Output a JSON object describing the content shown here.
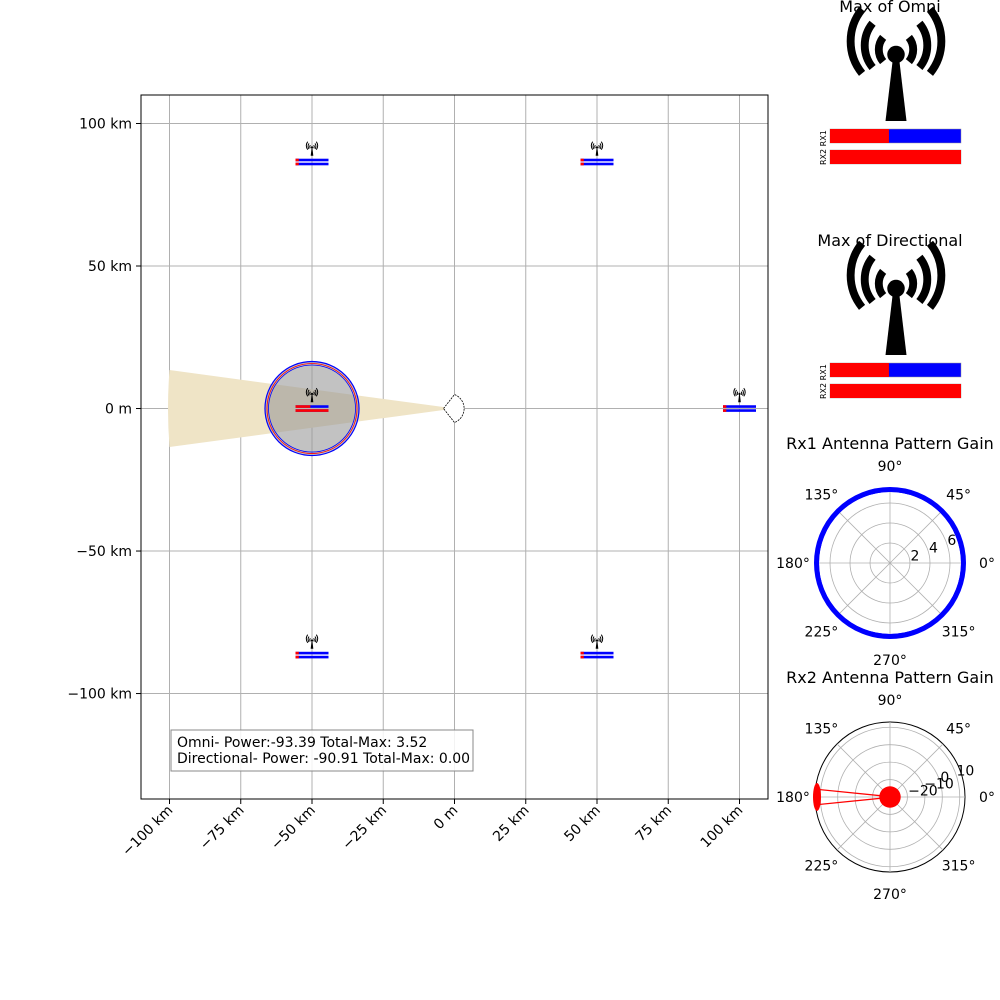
{
  "chart_data": [
    {
      "type": "scatter",
      "panel": "main-map",
      "xlim": [
        -110,
        110
      ],
      "ylim": [
        -137,
        110
      ],
      "xticks": [
        {
          "value": -100,
          "label": "−100 km"
        },
        {
          "value": -75,
          "label": "−75 km"
        },
        {
          "value": -50,
          "label": "−50 km"
        },
        {
          "value": -25,
          "label": "−25 km"
        },
        {
          "value": 0,
          "label": "0 m"
        },
        {
          "value": 25,
          "label": "25 km"
        },
        {
          "value": 50,
          "label": "50 km"
        },
        {
          "value": 75,
          "label": "75 km"
        },
        {
          "value": 100,
          "label": "100 km"
        }
      ],
      "yticks": [
        {
          "value": 100,
          "label": "100 km"
        },
        {
          "value": 50,
          "label": "50 km"
        },
        {
          "value": 0,
          "label": "0 m"
        },
        {
          "value": -50,
          "label": "−50 km"
        },
        {
          "value": -100,
          "label": "−100 km"
        }
      ],
      "grid": true,
      "emitters": [
        {
          "x": -50,
          "y": 88,
          "rx1_fill": 0.1,
          "rx2_fill": 0.1
        },
        {
          "x": 50,
          "y": 88,
          "rx1_fill": 0.1,
          "rx2_fill": 0.1
        },
        {
          "x": -50,
          "y": 1.5,
          "rx1_fill": 0.45,
          "rx2_fill": 1.0
        },
        {
          "x": 100,
          "y": 1.5,
          "rx1_fill": 0.1,
          "rx2_fill": 0.1
        },
        {
          "x": -50,
          "y": -85,
          "rx1_fill": 0.1,
          "rx2_fill": 0.1
        },
        {
          "x": 50,
          "y": -85,
          "rx1_fill": 0.1,
          "rx2_fill": 0.1
        }
      ],
      "range_circle": {
        "x": -50,
        "y": 0,
        "radius": 16.5
      },
      "beam": {
        "origin_x": 0,
        "origin_y": 0,
        "far_x": -100,
        "half_width_far": 13.5,
        "color": "#efe4c6"
      },
      "receiver": {
        "x": 0,
        "y": 0
      },
      "info_box": [
        "Omni- Power:-93.39 Total-Max: 3.52",
        "Directional- Power: -90.91 Total-Max: 0.00"
      ]
    },
    {
      "type": "bar",
      "panel": "max-omni",
      "title": "Max of Omni",
      "categories": [
        "RX1",
        "RX2"
      ],
      "values": [
        0.45,
        1.0
      ],
      "xlim": [
        0,
        1
      ]
    },
    {
      "type": "bar",
      "panel": "max-directional",
      "title": "Max of Directional",
      "categories": [
        "RX1",
        "RX2"
      ],
      "values": [
        0.45,
        1.0
      ],
      "xlim": [
        0,
        1
      ]
    },
    {
      "type": "line",
      "panel": "rx1-polar",
      "title": "Rx1 Antenna Pattern Gain",
      "radial_ticks": [
        "2",
        "4",
        "6"
      ],
      "rlim": [
        0,
        7.5
      ],
      "gain_constant": 7.2,
      "angle_ticks": [
        "0°",
        "45°",
        "90°",
        "135°",
        "180°",
        "225°",
        "270°",
        "315°"
      ],
      "color": "#0000ff"
    },
    {
      "type": "line",
      "panel": "rx2-polar",
      "title": "Rx2 Antenna Pattern Gain",
      "radial_ticks": [
        "−20",
        "−10",
        "0",
        "10"
      ],
      "rlim": [
        -30,
        13
      ],
      "main_lobe_dir": 180,
      "main_lobe_gain": 13,
      "floor_gain": -25,
      "angle_ticks": [
        "0°",
        "45°",
        "90°",
        "135°",
        "180°",
        "225°",
        "270°",
        "315°"
      ],
      "color": "#ff0000"
    }
  ],
  "colors": {
    "rx1": "#0000ff",
    "rx2": "#ff0000",
    "grid": "#b0b0b0"
  }
}
